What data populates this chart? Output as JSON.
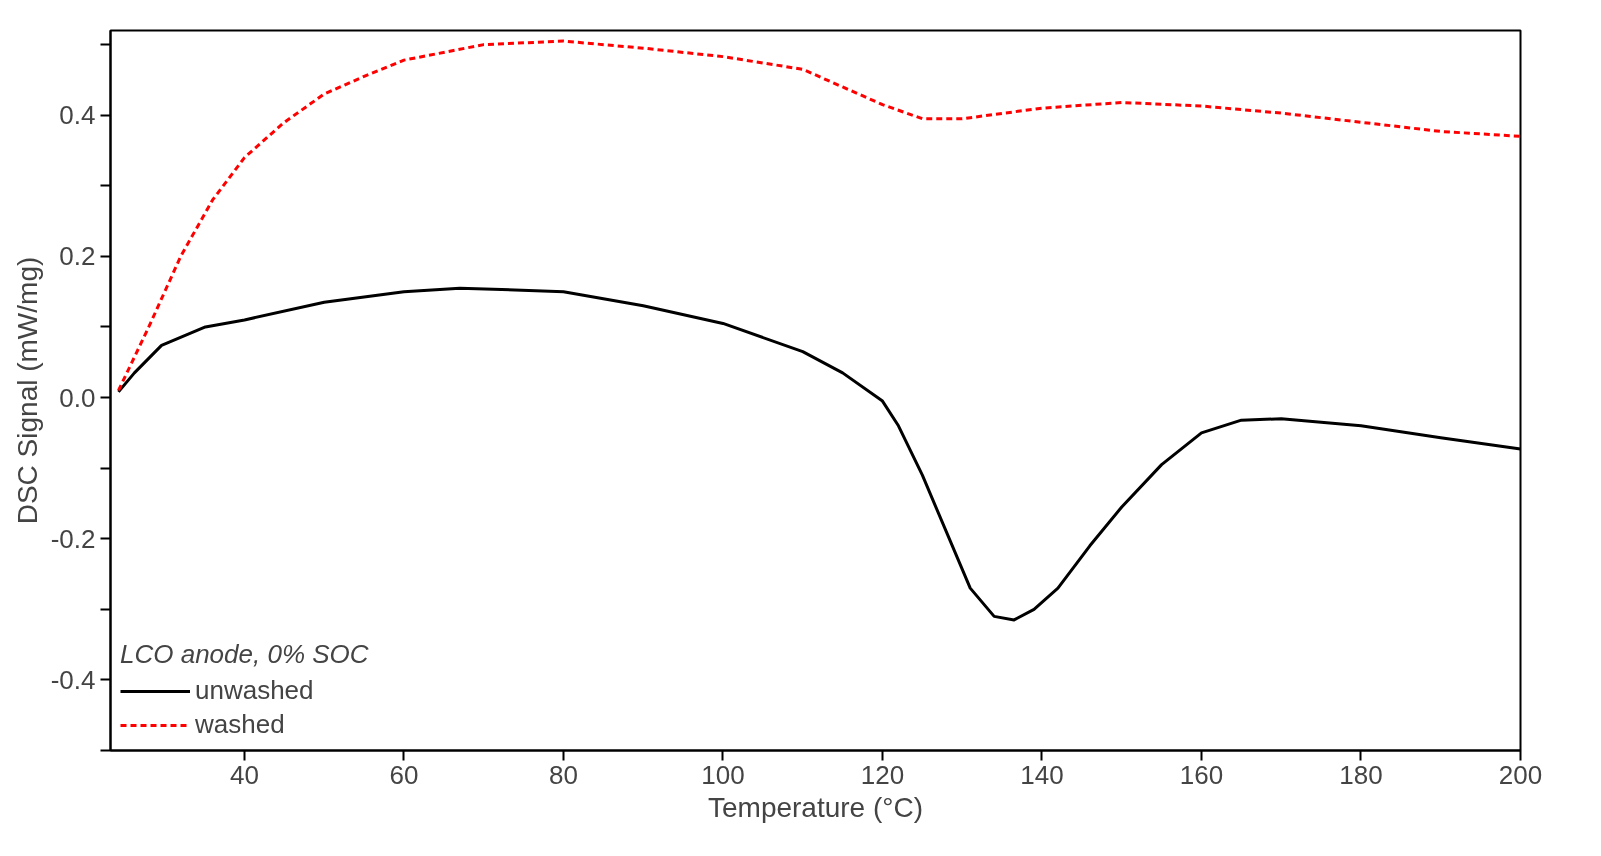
{
  "chart_data": {
    "type": "line",
    "xlabel": "Temperature (°C)",
    "ylabel": "DSC Signal (mW/mg)",
    "legend_title": "LCO anode, 0% SOC",
    "legend": "bottom left",
    "grid": false,
    "xlim": [
      23.2,
      200
    ],
    "xticks": [
      40,
      60,
      80,
      100,
      120,
      140,
      160,
      180,
      200
    ],
    "ylim": [
      -0.5,
      0.52
    ],
    "yticks": [
      {
        "value": -0.5,
        "label": null
      },
      {
        "value": -0.4,
        "label": "-0.4"
      },
      {
        "value": -0.3,
        "label": null
      },
      {
        "value": -0.2,
        "label": "-0.2"
      },
      {
        "value": -0.1,
        "label": null
      },
      {
        "value": 0,
        "label": "0.0"
      },
      {
        "value": 0.1,
        "label": null
      },
      {
        "value": 0.2,
        "label": "0.2"
      },
      {
        "value": 0.3,
        "label": null
      },
      {
        "value": 0.4,
        "label": "0.4"
      },
      {
        "value": 0.5,
        "label": null
      }
    ],
    "series": [
      {
        "name": "unwashed",
        "color": "#000000",
        "line_style": "solid",
        "x": [
          24.2,
          26.2,
          29.6,
          35.1,
          40,
          50,
          60,
          67,
          80,
          90,
          100,
          110,
          115,
          120,
          122,
          125,
          128,
          131,
          134,
          136.5,
          139,
          142,
          146,
          150,
          155,
          160,
          165,
          170,
          180,
          190,
          200
        ],
        "values": [
          0.008,
          0.035,
          0.074,
          0.1,
          0.11,
          0.135,
          0.15,
          0.155,
          0.15,
          0.13,
          0.105,
          0.065,
          0.035,
          -0.005,
          -0.04,
          -0.11,
          -0.19,
          -0.27,
          -0.31,
          -0.315,
          -0.3,
          -0.27,
          -0.21,
          -0.155,
          -0.095,
          -0.05,
          -0.032,
          -0.03,
          -0.04,
          -0.057,
          -0.073
        ]
      },
      {
        "name": "washed",
        "color": "#ff0000",
        "line_style": "dashed",
        "x": [
          24.2,
          28,
          32,
          36,
          40,
          45,
          50,
          55,
          60,
          70,
          80,
          90,
          100,
          110,
          115,
          120,
          125,
          130,
          140,
          150,
          160,
          170,
          180,
          190,
          200
        ],
        "values": [
          0.01,
          0.1,
          0.2,
          0.28,
          0.34,
          0.39,
          0.43,
          0.455,
          0.478,
          0.5,
          0.505,
          0.495,
          0.483,
          0.465,
          0.44,
          0.415,
          0.395,
          0.395,
          0.41,
          0.418,
          0.413,
          0.403,
          0.39,
          0.377,
          0.37
        ]
      }
    ]
  }
}
